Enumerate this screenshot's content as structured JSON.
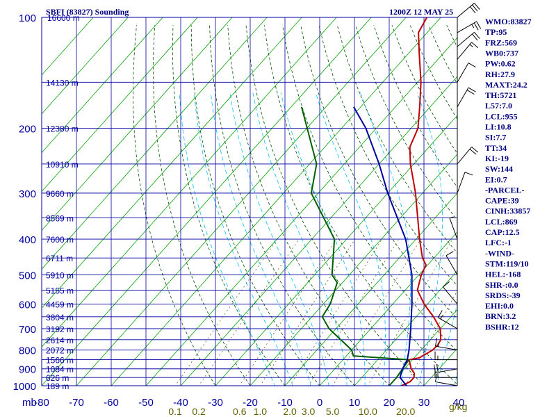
{
  "header": {
    "title": "SBFI (83827) Sounding",
    "time": "1200Z 12 MAY 25"
  },
  "chart_data": {
    "type": "line",
    "plot_kind": "skew-T log-P sounding",
    "pressure_unit": "mb",
    "temperature_unit": "°C",
    "mixing_ratio_unit": "g/kg",
    "y_scale": "log",
    "ylim": [
      1000,
      100
    ],
    "xlim_surface": [
      -80,
      40
    ],
    "pressure_ticks": [
      "100",
      "200",
      "300",
      "400",
      "500",
      "600",
      "700",
      "800",
      "900",
      "1000"
    ],
    "pressure_tick_values": [
      100,
      200,
      300,
      400,
      500,
      600,
      700,
      800,
      900,
      1000
    ],
    "temperature_ticks": [
      "-80",
      "-70",
      "-60",
      "-50",
      "-40",
      "-30",
      "-20",
      "-10",
      "0",
      "10",
      "20",
      "30",
      "40"
    ],
    "temperature_tick_values": [
      -80,
      -70,
      -60,
      -50,
      -40,
      -30,
      -20,
      -10,
      0,
      10,
      20,
      30,
      40
    ],
    "mixing_ratio_labels": [
      "0.1",
      "0.2",
      "0.6",
      "1.0",
      "2.0",
      "3.0",
      "5.0",
      "10.0",
      "20.0"
    ],
    "mixing_ratio_values": [
      0.1,
      0.2,
      0.6,
      1.0,
      2.0,
      3.0,
      5.0,
      10.0,
      20.0
    ],
    "height_labels": [
      {
        "p": 100,
        "label": "16600 m"
      },
      {
        "p": 150,
        "label": "14130 m"
      },
      {
        "p": 200,
        "label": "12380 m"
      },
      {
        "p": 250,
        "label": "10910 m"
      },
      {
        "p": 300,
        "label": "9660 m"
      },
      {
        "p": 350,
        "label": "8569 m"
      },
      {
        "p": 400,
        "label": "7600 m"
      },
      {
        "p": 450,
        "label": "6711 m"
      },
      {
        "p": 500,
        "label": "5910 m"
      },
      {
        "p": 550,
        "label": "5155 m"
      },
      {
        "p": 600,
        "label": "4459 m"
      },
      {
        "p": 650,
        "label": "3804 m"
      },
      {
        "p": 700,
        "label": "3192 m"
      },
      {
        "p": 750,
        "label": "2614 m"
      },
      {
        "p": 800,
        "label": "2072 m"
      },
      {
        "p": 850,
        "label": "1566 m"
      },
      {
        "p": 900,
        "label": "1084 m"
      },
      {
        "p": 950,
        "label": "626 m"
      },
      {
        "p": 1000,
        "label": "189 m"
      }
    ],
    "series": [
      {
        "role": "temperature",
        "color": "#c00000",
        "points": [
          {
            "p": 1000,
            "t": 23.5
          },
          {
            "p": 975,
            "t": 25.0
          },
          {
            "p": 950,
            "t": 25.0
          },
          {
            "p": 925,
            "t": 24.0
          },
          {
            "p": 900,
            "t": 22.0
          },
          {
            "p": 850,
            "t": 19.0
          },
          {
            "p": 840,
            "t": 21.5
          },
          {
            "p": 800,
            "t": 23.3
          },
          {
            "p": 775,
            "t": 23.5
          },
          {
            "p": 750,
            "t": 23.0
          },
          {
            "p": 700,
            "t": 20.0
          },
          {
            "p": 650,
            "t": 15.0
          },
          {
            "p": 600,
            "t": 9.0
          },
          {
            "p": 550,
            "t": 3.5
          },
          {
            "p": 500,
            "t": 0.7
          },
          {
            "p": 470,
            "t": -0.5
          },
          {
            "p": 450,
            "t": -3.3
          },
          {
            "p": 400,
            "t": -9.0
          },
          {
            "p": 300,
            "t": -22.0
          },
          {
            "p": 250,
            "t": -31.0
          },
          {
            "p": 225,
            "t": -35.5
          },
          {
            "p": 200,
            "t": -38.0
          },
          {
            "p": 175,
            "t": -43.0
          },
          {
            "p": 150,
            "t": -49.0
          },
          {
            "p": 125,
            "t": -57.0
          },
          {
            "p": 110,
            "t": -62.5
          },
          {
            "p": 100,
            "t": -64.0
          }
        ]
      },
      {
        "role": "dewpoint",
        "color": "#006000",
        "points": [
          {
            "p": 1000,
            "t": 20.0
          },
          {
            "p": 950,
            "t": 20.0
          },
          {
            "p": 900,
            "t": 19.5
          },
          {
            "p": 850,
            "t": 19.0
          },
          {
            "p": 830,
            "t": 2.0
          },
          {
            "p": 800,
            "t": 0.0
          },
          {
            "p": 700,
            "t": -12.0
          },
          {
            "p": 650,
            "t": -17.0
          },
          {
            "p": 600,
            "t": -18.0
          },
          {
            "p": 525,
            "t": -21.5
          },
          {
            "p": 500,
            "t": -25.0
          },
          {
            "p": 400,
            "t": -33.5
          },
          {
            "p": 300,
            "t": -52.0
          },
          {
            "p": 250,
            "t": -58.0
          },
          {
            "p": 175,
            "t": -77.0
          }
        ]
      },
      {
        "role": "parcel",
        "color": "#0000a0",
        "points": [
          {
            "p": 1000,
            "t": 25.0
          },
          {
            "p": 950,
            "t": 21.0
          },
          {
            "p": 900,
            "t": 19.5
          },
          {
            "p": 850,
            "t": 18.5
          },
          {
            "p": 800,
            "t": 16.5
          },
          {
            "p": 700,
            "t": 11.5
          },
          {
            "p": 600,
            "t": 5.5
          },
          {
            "p": 500,
            "t": -2.0
          },
          {
            "p": 400,
            "t": -13.0
          },
          {
            "p": 300,
            "t": -30.0
          },
          {
            "p": 250,
            "t": -40.0
          },
          {
            "p": 200,
            "t": -53.0
          },
          {
            "p": 175,
            "t": -62.0
          }
        ]
      }
    ],
    "wind_barbs": [
      {
        "p": 100,
        "dir": 310,
        "spd": 30
      },
      {
        "p": 110,
        "dir": 300,
        "spd": 25
      },
      {
        "p": 120,
        "dir": 310,
        "spd": 20
      },
      {
        "p": 130,
        "dir": 320,
        "spd": 15
      },
      {
        "p": 150,
        "dir": 330,
        "spd": 10
      },
      {
        "p": 175,
        "dir": 330,
        "spd": 20
      },
      {
        "p": 250,
        "dir": 320,
        "spd": 20
      },
      {
        "p": 300,
        "dir": 340,
        "spd": 10
      },
      {
        "p": 400,
        "dir": 20,
        "spd": 5
      },
      {
        "p": 500,
        "dir": 30,
        "spd": 10
      },
      {
        "p": 600,
        "dir": 40,
        "spd": 10
      },
      {
        "p": 700,
        "dir": 60,
        "spd": 15
      },
      {
        "p": 800,
        "dir": 80,
        "spd": 15
      },
      {
        "p": 850,
        "dir": 90,
        "spd": 15
      },
      {
        "p": 900,
        "dir": 100,
        "spd": 20
      },
      {
        "p": 950,
        "dir": 90,
        "spd": 15
      },
      {
        "p": 1000,
        "dir": 80,
        "spd": 10
      }
    ]
  },
  "indices": {
    "lines": [
      "WMO:83827",
      "TP:95",
      "FRZ:569",
      "WB0:737",
      "PW:0.62",
      "RH:27.9",
      "MAXT:24.2",
      "TH:5721",
      "L57:7.0",
      "LCL:955",
      "LI:10.8",
      "SI:7.7",
      "TT:34",
      "KI:-19",
      "SW:144",
      "EI:0.7",
      "-PARCEL-",
      "CAPE:39",
      "CINH:33857",
      "LCL:869",
      "CAP:12.5",
      "LFC:-1",
      "-WIND-",
      "STM:119/10",
      "HEL:-168",
      "SHR-:0.0",
      "SRDS:-39",
      "EHI:0.0",
      "BRN:3.2",
      "BSHR:12"
    ]
  },
  "colors": {
    "frame": "#0000a0",
    "grid": "#0000a0",
    "isotherm": "#00a000",
    "dry_adiabat": "#005000",
    "moist_adiabat": "#00c0ff",
    "mixing_ratio_label": "#606000",
    "title": "#000080",
    "index_text": "#000080"
  }
}
